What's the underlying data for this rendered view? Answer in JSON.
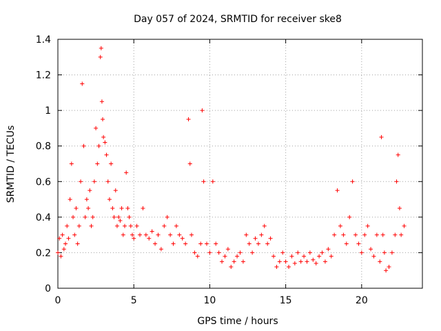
{
  "chart_data": {
    "type": "scatter",
    "title": "Day 057 of 2024, SRMTID for receiver ske8",
    "xlabel": "GPS time / hours",
    "ylabel": "SRMTID / TECUs",
    "xlim": [
      0,
      24
    ],
    "ylim": [
      0,
      1.4
    ],
    "xticks": [
      0,
      5,
      10,
      15,
      20
    ],
    "yticks": [
      0,
      0.2,
      0.4,
      0.6,
      0.8,
      1,
      1.2,
      1.4
    ],
    "xtick_labels": [
      "0",
      "5",
      "10",
      "15",
      "20"
    ],
    "ytick_labels": [
      "0",
      "0.2",
      "0.4",
      "0.6",
      "0.8",
      "1",
      "1.2",
      "1.4"
    ],
    "grid": true,
    "marker": "+",
    "marker_color": "#ff0000",
    "series": [
      {
        "name": "SRMTID",
        "x": [
          0.0,
          0.1,
          0.2,
          0.3,
          0.4,
          0.5,
          0.6,
          0.7,
          0.8,
          0.9,
          1.0,
          1.1,
          1.2,
          1.3,
          1.4,
          1.5,
          1.6,
          1.7,
          1.8,
          1.9,
          2.0,
          2.1,
          2.2,
          2.3,
          2.4,
          2.5,
          2.6,
          2.7,
          2.8,
          2.85,
          2.9,
          2.95,
          3.0,
          3.1,
          3.2,
          3.3,
          3.4,
          3.5,
          3.6,
          3.7,
          3.8,
          3.9,
          4.0,
          4.1,
          4.2,
          4.3,
          4.4,
          4.5,
          4.6,
          4.7,
          4.8,
          4.9,
          5.0,
          5.2,
          5.4,
          5.6,
          5.8,
          6.0,
          6.2,
          6.4,
          6.6,
          6.8,
          7.0,
          7.2,
          7.4,
          7.6,
          7.8,
          8.0,
          8.2,
          8.4,
          8.6,
          8.7,
          8.8,
          9.0,
          9.2,
          9.4,
          9.5,
          9.6,
          9.8,
          10.0,
          10.2,
          10.4,
          10.6,
          10.8,
          11.0,
          11.2,
          11.4,
          11.6,
          11.8,
          12.0,
          12.2,
          12.4,
          12.6,
          12.8,
          13.0,
          13.2,
          13.4,
          13.6,
          13.8,
          14.0,
          14.2,
          14.4,
          14.6,
          14.8,
          15.0,
          15.2,
          15.4,
          15.6,
          15.8,
          16.0,
          16.2,
          16.4,
          16.6,
          16.8,
          17.0,
          17.2,
          17.4,
          17.6,
          17.8,
          18.0,
          18.2,
          18.4,
          18.6,
          18.8,
          19.0,
          19.2,
          19.4,
          19.6,
          19.8,
          20.0,
          20.2,
          20.4,
          20.6,
          20.8,
          21.0,
          21.2,
          21.3,
          21.4,
          21.5,
          21.6,
          21.8,
          22.0,
          22.2,
          22.3,
          22.4,
          22.5,
          22.6,
          22.8
        ],
        "y": [
          0.2,
          0.28,
          0.18,
          0.3,
          0.22,
          0.25,
          0.35,
          0.28,
          0.5,
          0.7,
          0.4,
          0.3,
          0.45,
          0.25,
          0.35,
          0.6,
          1.15,
          0.8,
          0.4,
          0.5,
          0.45,
          0.55,
          0.35,
          0.4,
          0.6,
          0.9,
          0.7,
          0.8,
          1.3,
          1.35,
          1.05,
          0.95,
          0.85,
          0.82,
          0.75,
          0.6,
          0.5,
          0.7,
          0.45,
          0.4,
          0.55,
          0.35,
          0.4,
          0.38,
          0.45,
          0.3,
          0.35,
          0.65,
          0.45,
          0.4,
          0.35,
          0.3,
          0.28,
          0.35,
          0.3,
          0.45,
          0.3,
          0.28,
          0.32,
          0.25,
          0.3,
          0.22,
          0.35,
          0.4,
          0.3,
          0.25,
          0.35,
          0.3,
          0.28,
          0.25,
          0.95,
          0.7,
          0.3,
          0.2,
          0.18,
          0.25,
          1.0,
          0.6,
          0.25,
          0.2,
          0.6,
          0.25,
          0.2,
          0.15,
          0.18,
          0.22,
          0.12,
          0.15,
          0.18,
          0.2,
          0.15,
          0.3,
          0.25,
          0.2,
          0.28,
          0.25,
          0.3,
          0.35,
          0.25,
          0.28,
          0.18,
          0.12,
          0.15,
          0.2,
          0.15,
          0.12,
          0.18,
          0.14,
          0.2,
          0.15,
          0.18,
          0.15,
          0.2,
          0.16,
          0.14,
          0.18,
          0.2,
          0.15,
          0.22,
          0.18,
          0.3,
          0.55,
          0.35,
          0.3,
          0.25,
          0.4,
          0.6,
          0.3,
          0.25,
          0.2,
          0.3,
          0.35,
          0.22,
          0.18,
          0.3,
          0.15,
          0.85,
          0.3,
          0.2,
          0.1,
          0.12,
          0.2,
          0.3,
          0.6,
          0.75,
          0.45,
          0.3,
          0.35
        ]
      }
    ]
  }
}
